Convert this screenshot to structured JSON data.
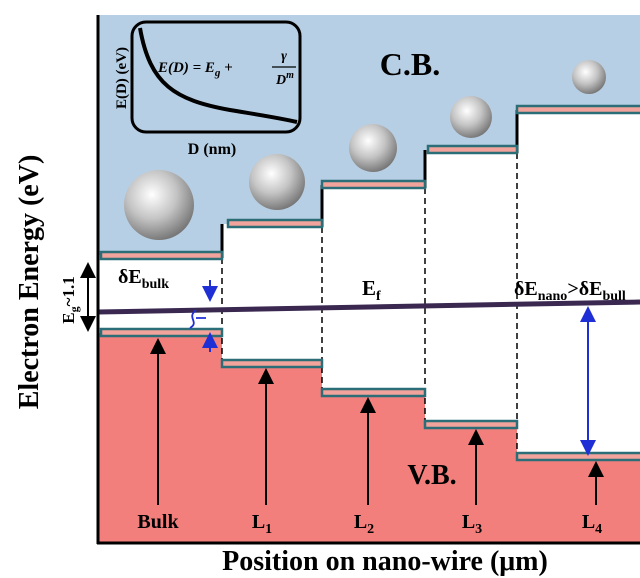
{
  "axes": {
    "y_label": "Electron Energy (eV)",
    "x_label": "Position on nano-wire (μm)"
  },
  "bands": {
    "conduction": "C.B.",
    "valence": "V.B.",
    "fermi": {
      "main": "E",
      "sub": "f"
    }
  },
  "gaps": {
    "bulk": {
      "main": "δE",
      "sub": "bulk"
    },
    "nano": {
      "main": "δE",
      "sub": "nano",
      "relation": ">δE",
      "sub2": "bull"
    },
    "band_gap": {
      "main": "E",
      "sub": "g",
      "value": "~1.1"
    }
  },
  "regions": [
    {
      "main": "Bulk"
    },
    {
      "main": "L",
      "sub": "1"
    },
    {
      "main": "L",
      "sub": "2"
    },
    {
      "main": "L",
      "sub": "3"
    },
    {
      "main": "L",
      "sub": "4"
    }
  ],
  "inset": {
    "y_label": "E(D) (eV)",
    "x_label": "D (nm)",
    "formula": {
      "left": "E(D) = E",
      "sub": "g",
      "plus": " + ",
      "numerator": "γ",
      "denominator": "D",
      "exponent": "m"
    }
  }
}
